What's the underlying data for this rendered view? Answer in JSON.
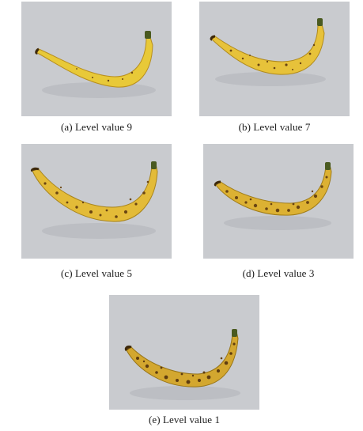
{
  "figure": {
    "panels": [
      {
        "id": "a",
        "caption": "(a) Level value 9",
        "spots": "few",
        "color": "#e8c938"
      },
      {
        "id": "b",
        "caption": "(b) Level value 7",
        "spots": "some",
        "color": "#e7c23a"
      },
      {
        "id": "c",
        "caption": "(c) Level value 5",
        "spots": "moderate",
        "color": "#e3bb38"
      },
      {
        "id": "d",
        "caption": "(d) Level value 3",
        "spots": "many",
        "color": "#dcb133"
      },
      {
        "id": "e",
        "caption": "(e) Level value 1",
        "spots": "very many",
        "color": "#d3a72f"
      }
    ],
    "colors": {
      "background": "#c9cbcf",
      "peel_dark": "#5a3b12",
      "stem": "#4a5a20"
    }
  }
}
